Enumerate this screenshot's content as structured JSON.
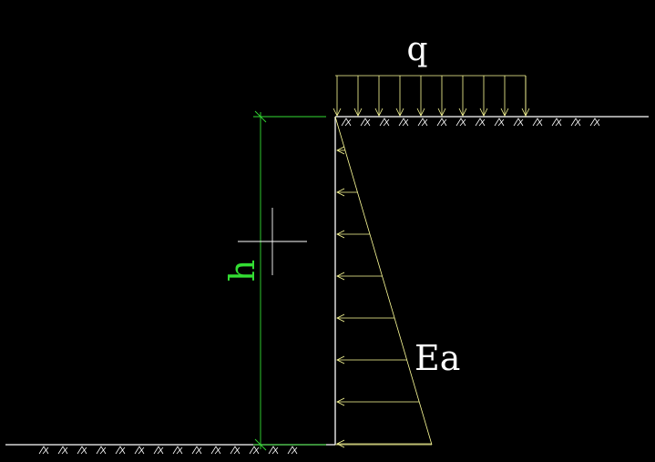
{
  "labels": {
    "surcharge": "q",
    "height": "h",
    "earth_pressure": "Ea"
  },
  "colors": {
    "background": "#000000",
    "structure": "#ffffff",
    "load": "#ffff99",
    "dimension": "#33dd33"
  }
}
